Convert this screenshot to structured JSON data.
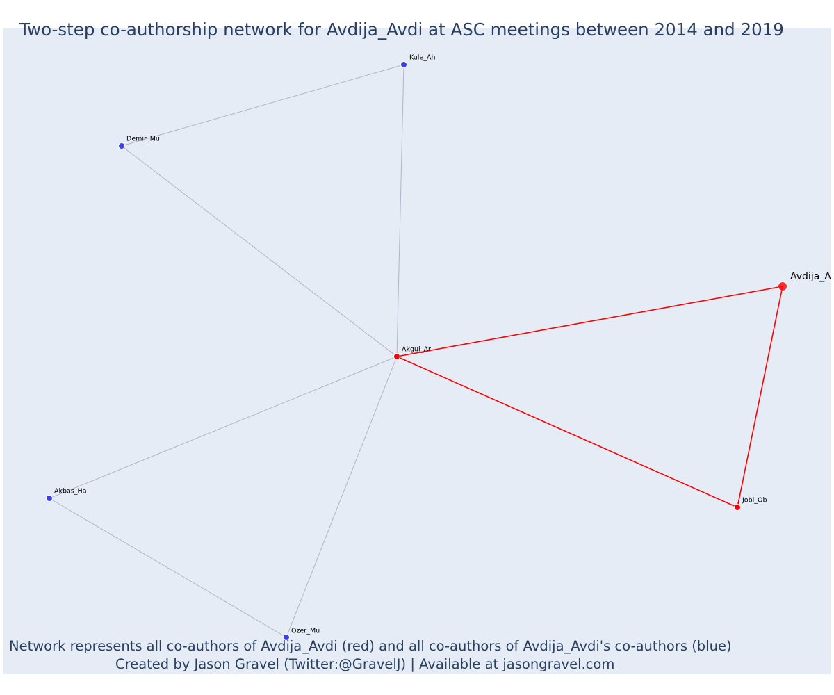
{
  "title": "Two-step co-authorship network for Avdija_Avdi at ASC meetings between 2014 and 2019",
  "footer": {
    "line1": "Network represents all co-authors of Avdija_Avdi (red) and all co-authors of Avdija_Avdi's co-authors (blue)",
    "line2": "Created by Jason Gravel (Twitter:@GravelJ) | Available at jasongravel.com"
  },
  "colors": {
    "background": "#e5ecf6",
    "red": "#ff0000",
    "blue": "#3b3fe8",
    "edge_gray": "#b0b4c8",
    "title_text": "#2a3f5f"
  },
  "nodes": [
    {
      "id": "Kule_Ah",
      "label": "Kule_Ah",
      "group": "blue"
    },
    {
      "id": "Demir_Mu",
      "label": "Demir_Mu",
      "group": "blue"
    },
    {
      "id": "Avdija_A",
      "label": "Avdija_A",
      "group": "focal"
    },
    {
      "id": "Akgul_Ar",
      "label": "Akgul_Ar",
      "group": "red"
    },
    {
      "id": "Jobi_Ob",
      "label": "Jobi_Ob",
      "group": "red"
    },
    {
      "id": "Akbas_Ha",
      "label": "Akbas_Ha",
      "group": "blue"
    },
    {
      "id": "Ozer_Mu",
      "label": "Ozer_Mu",
      "group": "blue"
    }
  ],
  "edges": [
    {
      "source": "Kule_Ah",
      "target": "Demir_Mu",
      "group": "gray"
    },
    {
      "source": "Kule_Ah",
      "target": "Akgul_Ar",
      "group": "gray"
    },
    {
      "source": "Demir_Mu",
      "target": "Akgul_Ar",
      "group": "gray"
    },
    {
      "source": "Akbas_Ha",
      "target": "Akgul_Ar",
      "group": "gray"
    },
    {
      "source": "Ozer_Mu",
      "target": "Akgul_Ar",
      "group": "gray"
    },
    {
      "source": "Akbas_Ha",
      "target": "Ozer_Mu",
      "group": "gray"
    },
    {
      "source": "Akgul_Ar",
      "target": "Avdija_A",
      "group": "red"
    },
    {
      "source": "Akgul_Ar",
      "target": "Jobi_Ob",
      "group": "red"
    },
    {
      "source": "Avdija_A",
      "target": "Jobi_Ob",
      "group": "red"
    }
  ]
}
